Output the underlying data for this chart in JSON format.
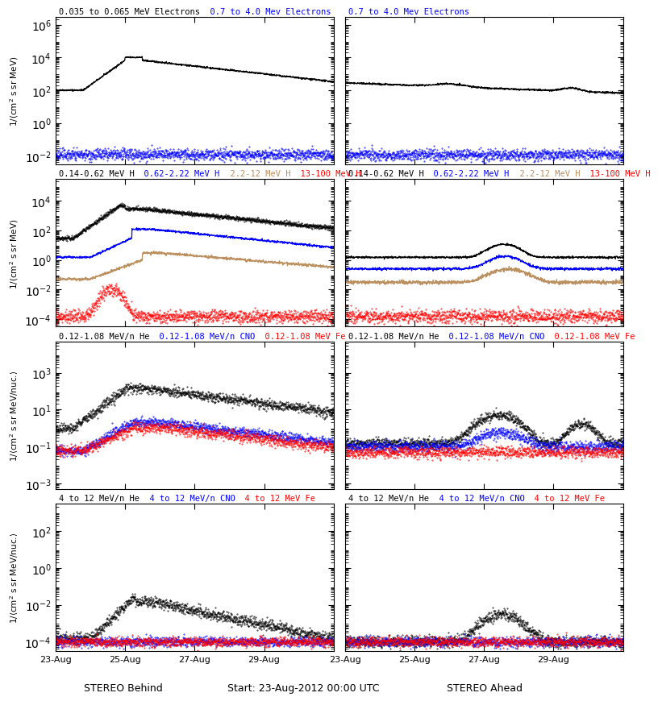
{
  "xticklabels": [
    "23-Aug",
    "25-Aug",
    "27-Aug",
    "29-Aug"
  ],
  "row_configs": [
    {
      "ylim": [
        0.003,
        3000000.0
      ],
      "yticks": [
        0.01,
        1.0,
        100.0,
        10000.0,
        1000000.0
      ]
    },
    {
      "ylim": [
        3e-05,
        300000.0
      ],
      "yticks": [
        0.0001,
        0.01,
        1.0,
        100.0,
        10000.0
      ]
    },
    {
      "ylim": [
        0.0005,
        50000.0
      ],
      "yticks": [
        0.001,
        0.1,
        10.0,
        1000.0
      ]
    },
    {
      "ylim": [
        3e-05,
        3000.0
      ],
      "yticks": [
        0.0001,
        0.01,
        1.0,
        100.0
      ]
    }
  ],
  "ylabels": [
    "1/(cm² s sr MeV)",
    "1/(cm² s sr MeV)",
    "1/(cm² s sr MeV/nuc.⟩",
    "1/(cm² s sr MeV/nuc.⟩"
  ],
  "left_titles": [
    [
      {
        "text": "0.035 to 0.065 MeV Electrons",
        "color": "black"
      },
      {
        "text": "  0.7 to 4.0 Mev Electrons",
        "color": "blue"
      }
    ],
    [
      {
        "text": "0.14-0.62 MeV H",
        "color": "black"
      },
      {
        "text": "  0.62-2.22 MeV H",
        "color": "blue"
      },
      {
        "text": "  2.2-12 MeV H",
        "color": "#bc8f5f"
      },
      {
        "text": "  13-100 MeV H",
        "color": "red"
      }
    ],
    [
      {
        "text": "0.12-1.08 MeV/n He",
        "color": "black"
      },
      {
        "text": "  0.12-1.08 MeV/n CNO",
        "color": "blue"
      },
      {
        "text": "  0.12-1.08 MeV Fe",
        "color": "red"
      }
    ],
    [
      {
        "text": "4 to 12 MeV/n He",
        "color": "black"
      },
      {
        "text": "  4 to 12 MeV/n CNO",
        "color": "blue"
      },
      {
        "text": "  4 to 12 MeV Fe",
        "color": "red"
      }
    ]
  ],
  "right_titles": [
    [
      {
        "text": "0.7 to 4.0 Mev Electrons",
        "color": "blue"
      }
    ],
    [
      {
        "text": "0.14-0.62 MeV H",
        "color": "black"
      },
      {
        "text": "  0.62-2.22 MeV H",
        "color": "blue"
      },
      {
        "text": "  2.2-12 MeV H",
        "color": "#bc8f5f"
      },
      {
        "text": "  13-100 MeV H",
        "color": "red"
      }
    ],
    [
      {
        "text": "0.12-1.08 MeV/n He",
        "color": "black"
      },
      {
        "text": "  0.12-1.08 MeV/n CNO",
        "color": "blue"
      },
      {
        "text": "  0.12-1.08 MeV Fe",
        "color": "red"
      }
    ],
    [
      {
        "text": "4 to 12 MeV/n He",
        "color": "black"
      },
      {
        "text": "  4 to 12 MeV/n CNO",
        "color": "blue"
      },
      {
        "text": "  4 to 12 MeV Fe",
        "color": "red"
      }
    ]
  ]
}
